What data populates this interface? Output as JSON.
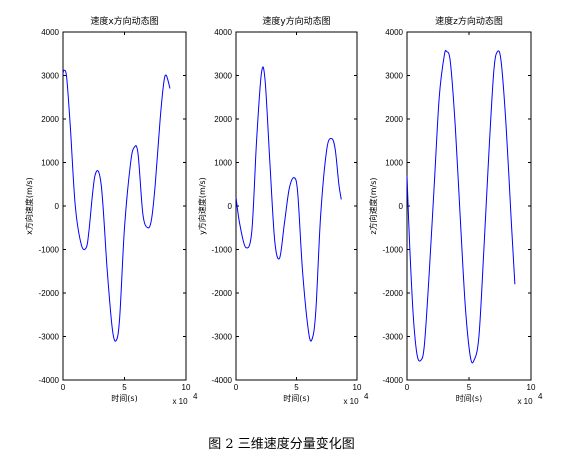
{
  "caption": "图 2  三维速度分量变化图",
  "chart_data": [
    {
      "type": "line",
      "title": "速度x方向动态图",
      "xlabel": "时间(s)",
      "ylabel": "x方向速度(m/s)",
      "x_multiplier": "x 10",
      "x_multiplier_exp": "4",
      "xlim": [
        0,
        10
      ],
      "ylim": [
        -4000,
        4000
      ],
      "xticks": [
        "0",
        "5",
        "10"
      ],
      "yticks": [
        "-4000",
        "-3000",
        "-2000",
        "-1000",
        "0",
        "1000",
        "2000",
        "3000",
        "4000"
      ],
      "grid": false,
      "color": "#0000ff",
      "series": [
        {
          "x": [
            0,
            0.1,
            0.3,
            0.6,
            1.0,
            1.5,
            1.9,
            2.1,
            2.6,
            3.1,
            3.6,
            4.0,
            4.3,
            4.6,
            5.0,
            5.5,
            5.8,
            6.1,
            6.5,
            6.9,
            7.2,
            7.5,
            7.9,
            8.2,
            8.4,
            8.7
          ],
          "y": [
            3050,
            3120,
            2950,
            1800,
            0,
            -900,
            -950,
            -600,
            700,
            500,
            -1500,
            -2800,
            -3100,
            -2600,
            -500,
            1000,
            1350,
            1200,
            -200,
            -500,
            -300,
            500,
            2000,
            2850,
            3000,
            2700
          ]
        }
      ]
    },
    {
      "type": "line",
      "title": "速度y方向动态图",
      "xlabel": "时间(s)",
      "ylabel": "y方向速度(m/s)",
      "x_multiplier": "x 10",
      "x_multiplier_exp": "4",
      "xlim": [
        0,
        10
      ],
      "ylim": [
        -4000,
        4000
      ],
      "xticks": [
        "0",
        "5",
        "10"
      ],
      "yticks": [
        "-4000",
        "-3000",
        "-2000",
        "-1000",
        "0",
        "1000",
        "2000",
        "3000",
        "4000"
      ],
      "grid": false,
      "color": "#0000ff",
      "series": [
        {
          "x": [
            0,
            0.3,
            0.8,
            1.3,
            1.7,
            2.1,
            2.4,
            2.8,
            3.2,
            3.6,
            4.0,
            4.4,
            4.8,
            5.1,
            5.5,
            6.0,
            6.3,
            6.6,
            7.0,
            7.5,
            7.9,
            8.2,
            8.5,
            8.7
          ],
          "y": [
            200,
            -400,
            -950,
            -600,
            1500,
            3050,
            2900,
            1000,
            -800,
            -1200,
            -400,
            400,
            650,
            300,
            -1500,
            -2900,
            -3050,
            -2400,
            -200,
            1300,
            1550,
            1300,
            500,
            150
          ]
        }
      ]
    },
    {
      "type": "line",
      "title": "速度z方向动态图",
      "xlabel": "时间(s)",
      "ylabel": "z方向速度(m/s)",
      "x_multiplier": "x 10",
      "x_multiplier_exp": "4",
      "xlim": [
        0,
        10
      ],
      "ylim": [
        -4000,
        4000
      ],
      "xticks": [
        "0",
        "5",
        "10"
      ],
      "yticks": [
        "-4000",
        "-3000",
        "-2000",
        "-1000",
        "0",
        "1000",
        "2000",
        "3000",
        "4000"
      ],
      "grid": false,
      "color": "#0000ff",
      "series": [
        {
          "x": [
            0,
            0.2,
            0.5,
            0.8,
            1.1,
            1.4,
            1.8,
            2.2,
            2.6,
            3.0,
            3.2,
            3.5,
            3.9,
            4.3,
            4.7,
            5.1,
            5.4,
            5.8,
            6.2,
            6.6,
            7.0,
            7.3,
            7.6,
            8.0,
            8.4,
            8.7
          ],
          "y": [
            700,
            -800,
            -2500,
            -3400,
            -3550,
            -3200,
            -1500,
            500,
            2500,
            3450,
            3550,
            3300,
            1800,
            -300,
            -2300,
            -3450,
            -3550,
            -3000,
            -1000,
            1200,
            3100,
            3550,
            3300,
            1800,
            -300,
            -1800
          ]
        }
      ]
    }
  ]
}
